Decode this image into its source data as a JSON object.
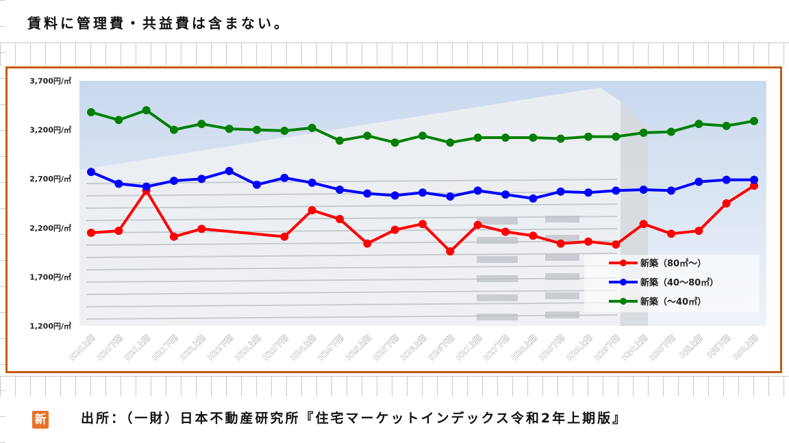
{
  "header": {
    "note": "賃料に管理費・共益費は含まない。"
  },
  "source": {
    "text": "出所：（一財）日本不動産研究所『住宅マーケットインデックス令和2年上期版』"
  },
  "badge": {
    "label": "新"
  },
  "chart_data": {
    "type": "line",
    "categories": [
      "H20上期",
      "H20下期",
      "H21上期",
      "H21下期",
      "H22上期",
      "H22下期",
      "H23上期",
      "H23下期",
      "H24上期",
      "H24下期",
      "H25上期",
      "H25下期",
      "H26上期",
      "H26下期",
      "H27上期",
      "H27下期",
      "H28上期",
      "H28下期",
      "H29上期",
      "H29下期",
      "H30上期",
      "H30下期",
      "R元上期",
      "R元下期",
      "R02上期"
    ],
    "ylim": [
      1200,
      3700
    ],
    "yticks": [
      {
        "value": 1200,
        "label": "1,200円/㎡"
      },
      {
        "value": 1700,
        "label": "1,700円/㎡"
      },
      {
        "value": 2200,
        "label": "2,200円/㎡"
      },
      {
        "value": 2700,
        "label": "2,700円/㎡"
      },
      {
        "value": 3200,
        "label": "3,200円/㎡"
      },
      {
        "value": 3700,
        "label": "3,700円/㎡"
      }
    ],
    "series": [
      {
        "name": "新築（80㎡～）",
        "color": "#ff0000",
        "values": [
          2150,
          2170,
          2580,
          2110,
          2190,
          null,
          null,
          2110,
          2380,
          2290,
          2040,
          2180,
          2240,
          1960,
          2230,
          2160,
          2120,
          2040,
          2060,
          2030,
          2240,
          2140,
          2170,
          2450,
          2630
        ]
      },
      {
        "name": "新築（40～80㎡）",
        "color": "#0000ff",
        "values": [
          2770,
          2650,
          2620,
          2680,
          2700,
          2780,
          2640,
          2710,
          2660,
          2590,
          2550,
          2530,
          2560,
          2520,
          2580,
          2540,
          2500,
          2570,
          2560,
          2580,
          2590,
          2580,
          2670,
          2690,
          2690
        ]
      },
      {
        "name": "新築（～40㎡）",
        "color": "#008000",
        "values": [
          3380,
          3300,
          3400,
          3200,
          3260,
          3210,
          3200,
          3190,
          3220,
          3090,
          3140,
          3070,
          3140,
          3070,
          3120,
          3120,
          3120,
          3110,
          3130,
          3130,
          3170,
          3180,
          3260,
          3240,
          3290
        ]
      }
    ],
    "legend_position": "bottom-right"
  }
}
